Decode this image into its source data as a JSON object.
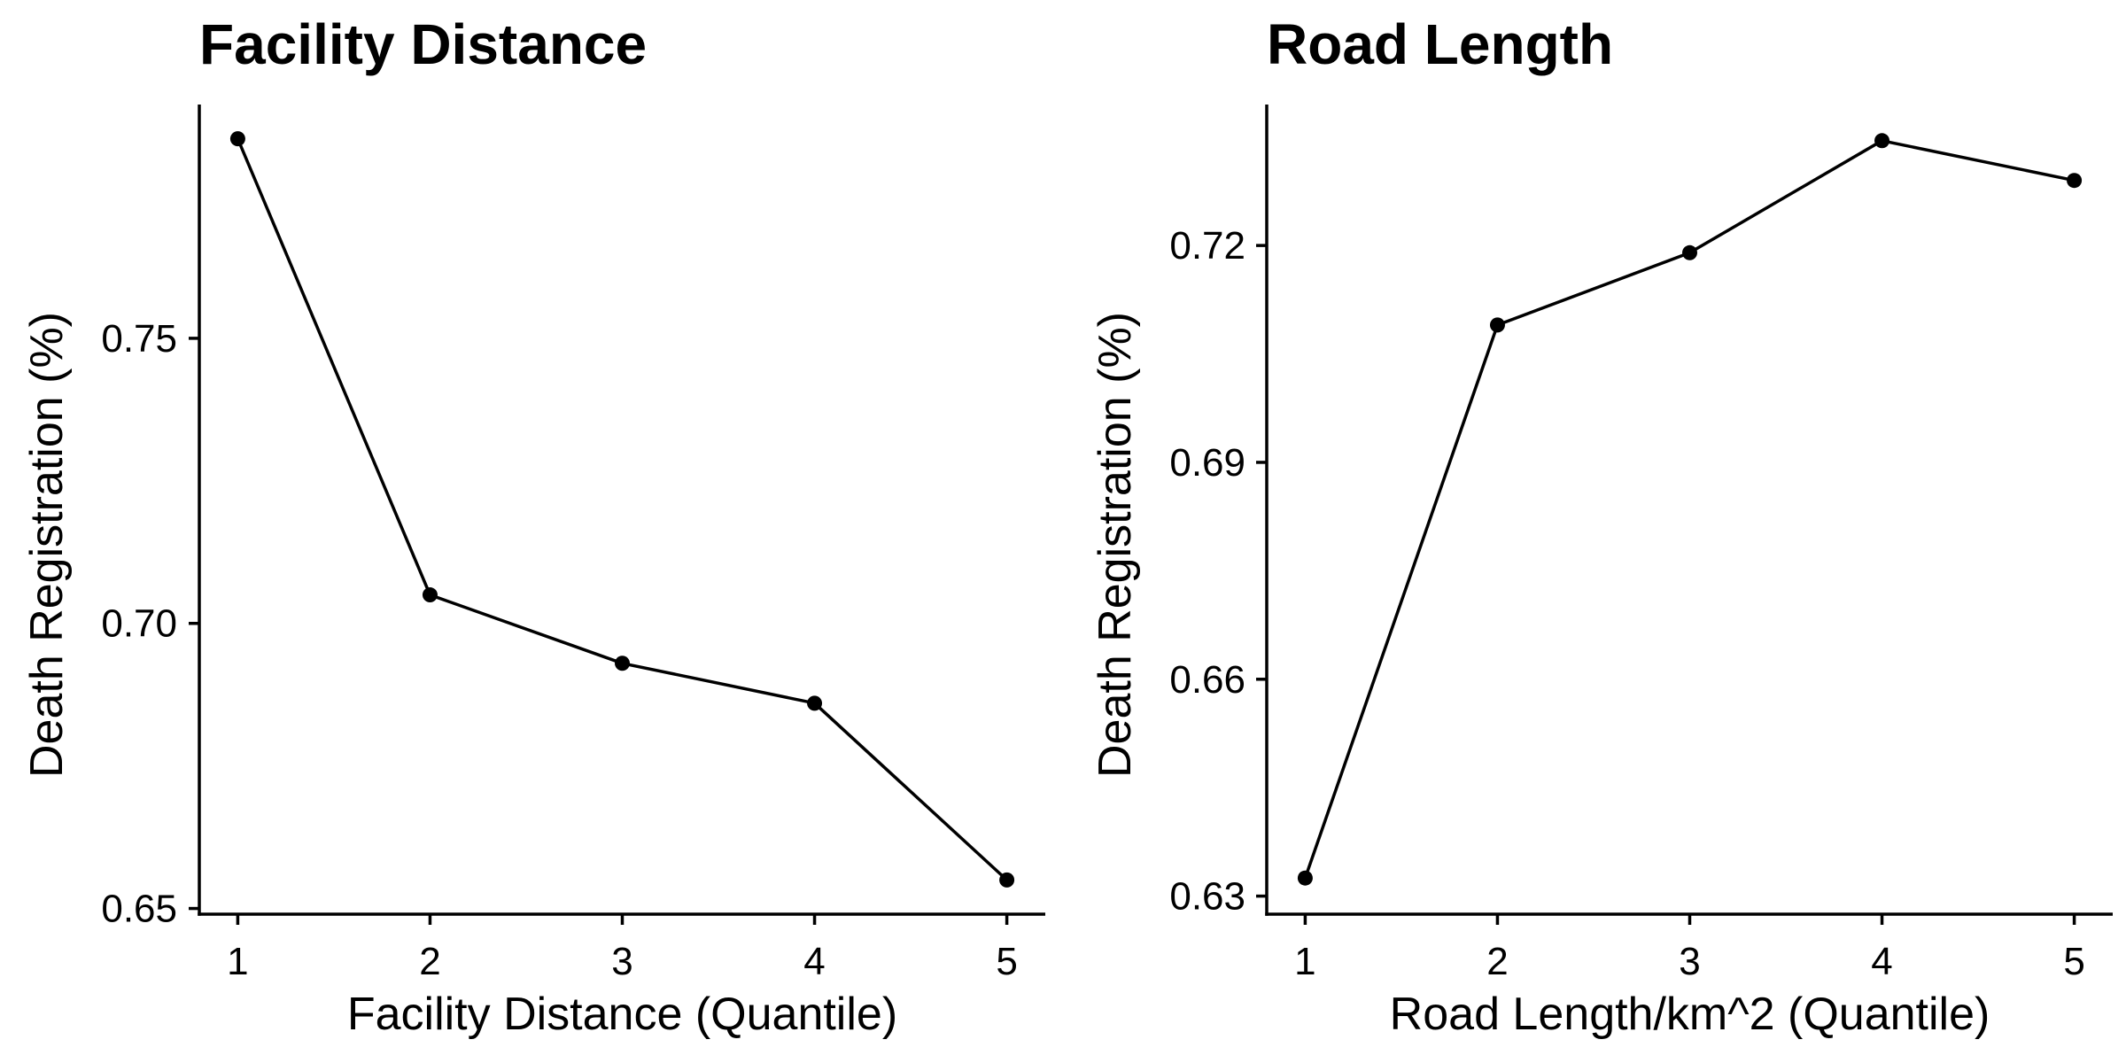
{
  "chart_data": [
    {
      "type": "line",
      "title": "Facility Distance",
      "xlabel": "Facility Distance (Quantile)",
      "ylabel": "Death Registration (%)",
      "x": [
        1,
        2,
        3,
        4,
        5
      ],
      "series": [
        {
          "values": [
            0.785,
            0.705,
            0.693,
            0.686,
            0.655
          ]
        }
      ],
      "xticks": [
        1,
        2,
        3,
        4,
        5
      ],
      "xtick_labels": [
        "1",
        "2",
        "3",
        "4",
        "5"
      ],
      "yticks": [
        0.65,
        0.7,
        0.75
      ],
      "ytick_labels": [
        "0.65",
        "0.70",
        "0.75"
      ],
      "xlim": [
        0.8,
        5.2
      ],
      "ylim": [
        0.649,
        0.791
      ],
      "grid": false,
      "color": "#000000"
    },
    {
      "type": "line",
      "title": "Road Length",
      "xlabel": "Road Length/km^2 (Quantile)",
      "ylabel": "Death Registration (%)",
      "x": [
        1,
        2,
        3,
        4,
        5
      ],
      "series": [
        {
          "values": [
            0.6325,
            0.709,
            0.719,
            0.7345,
            0.729
          ]
        }
      ],
      "xticks": [
        1,
        2,
        3,
        4,
        5
      ],
      "xtick_labels": [
        "1",
        "2",
        "3",
        "4",
        "5"
      ],
      "yticks": [
        0.63,
        0.66,
        0.69,
        0.72
      ],
      "ytick_labels": [
        "0.63",
        "0.66",
        "0.69",
        "0.72"
      ],
      "xlim": [
        0.8,
        5.2
      ],
      "ylim": [
        0.6275,
        0.7395
      ],
      "grid": false,
      "color": "#000000"
    }
  ]
}
